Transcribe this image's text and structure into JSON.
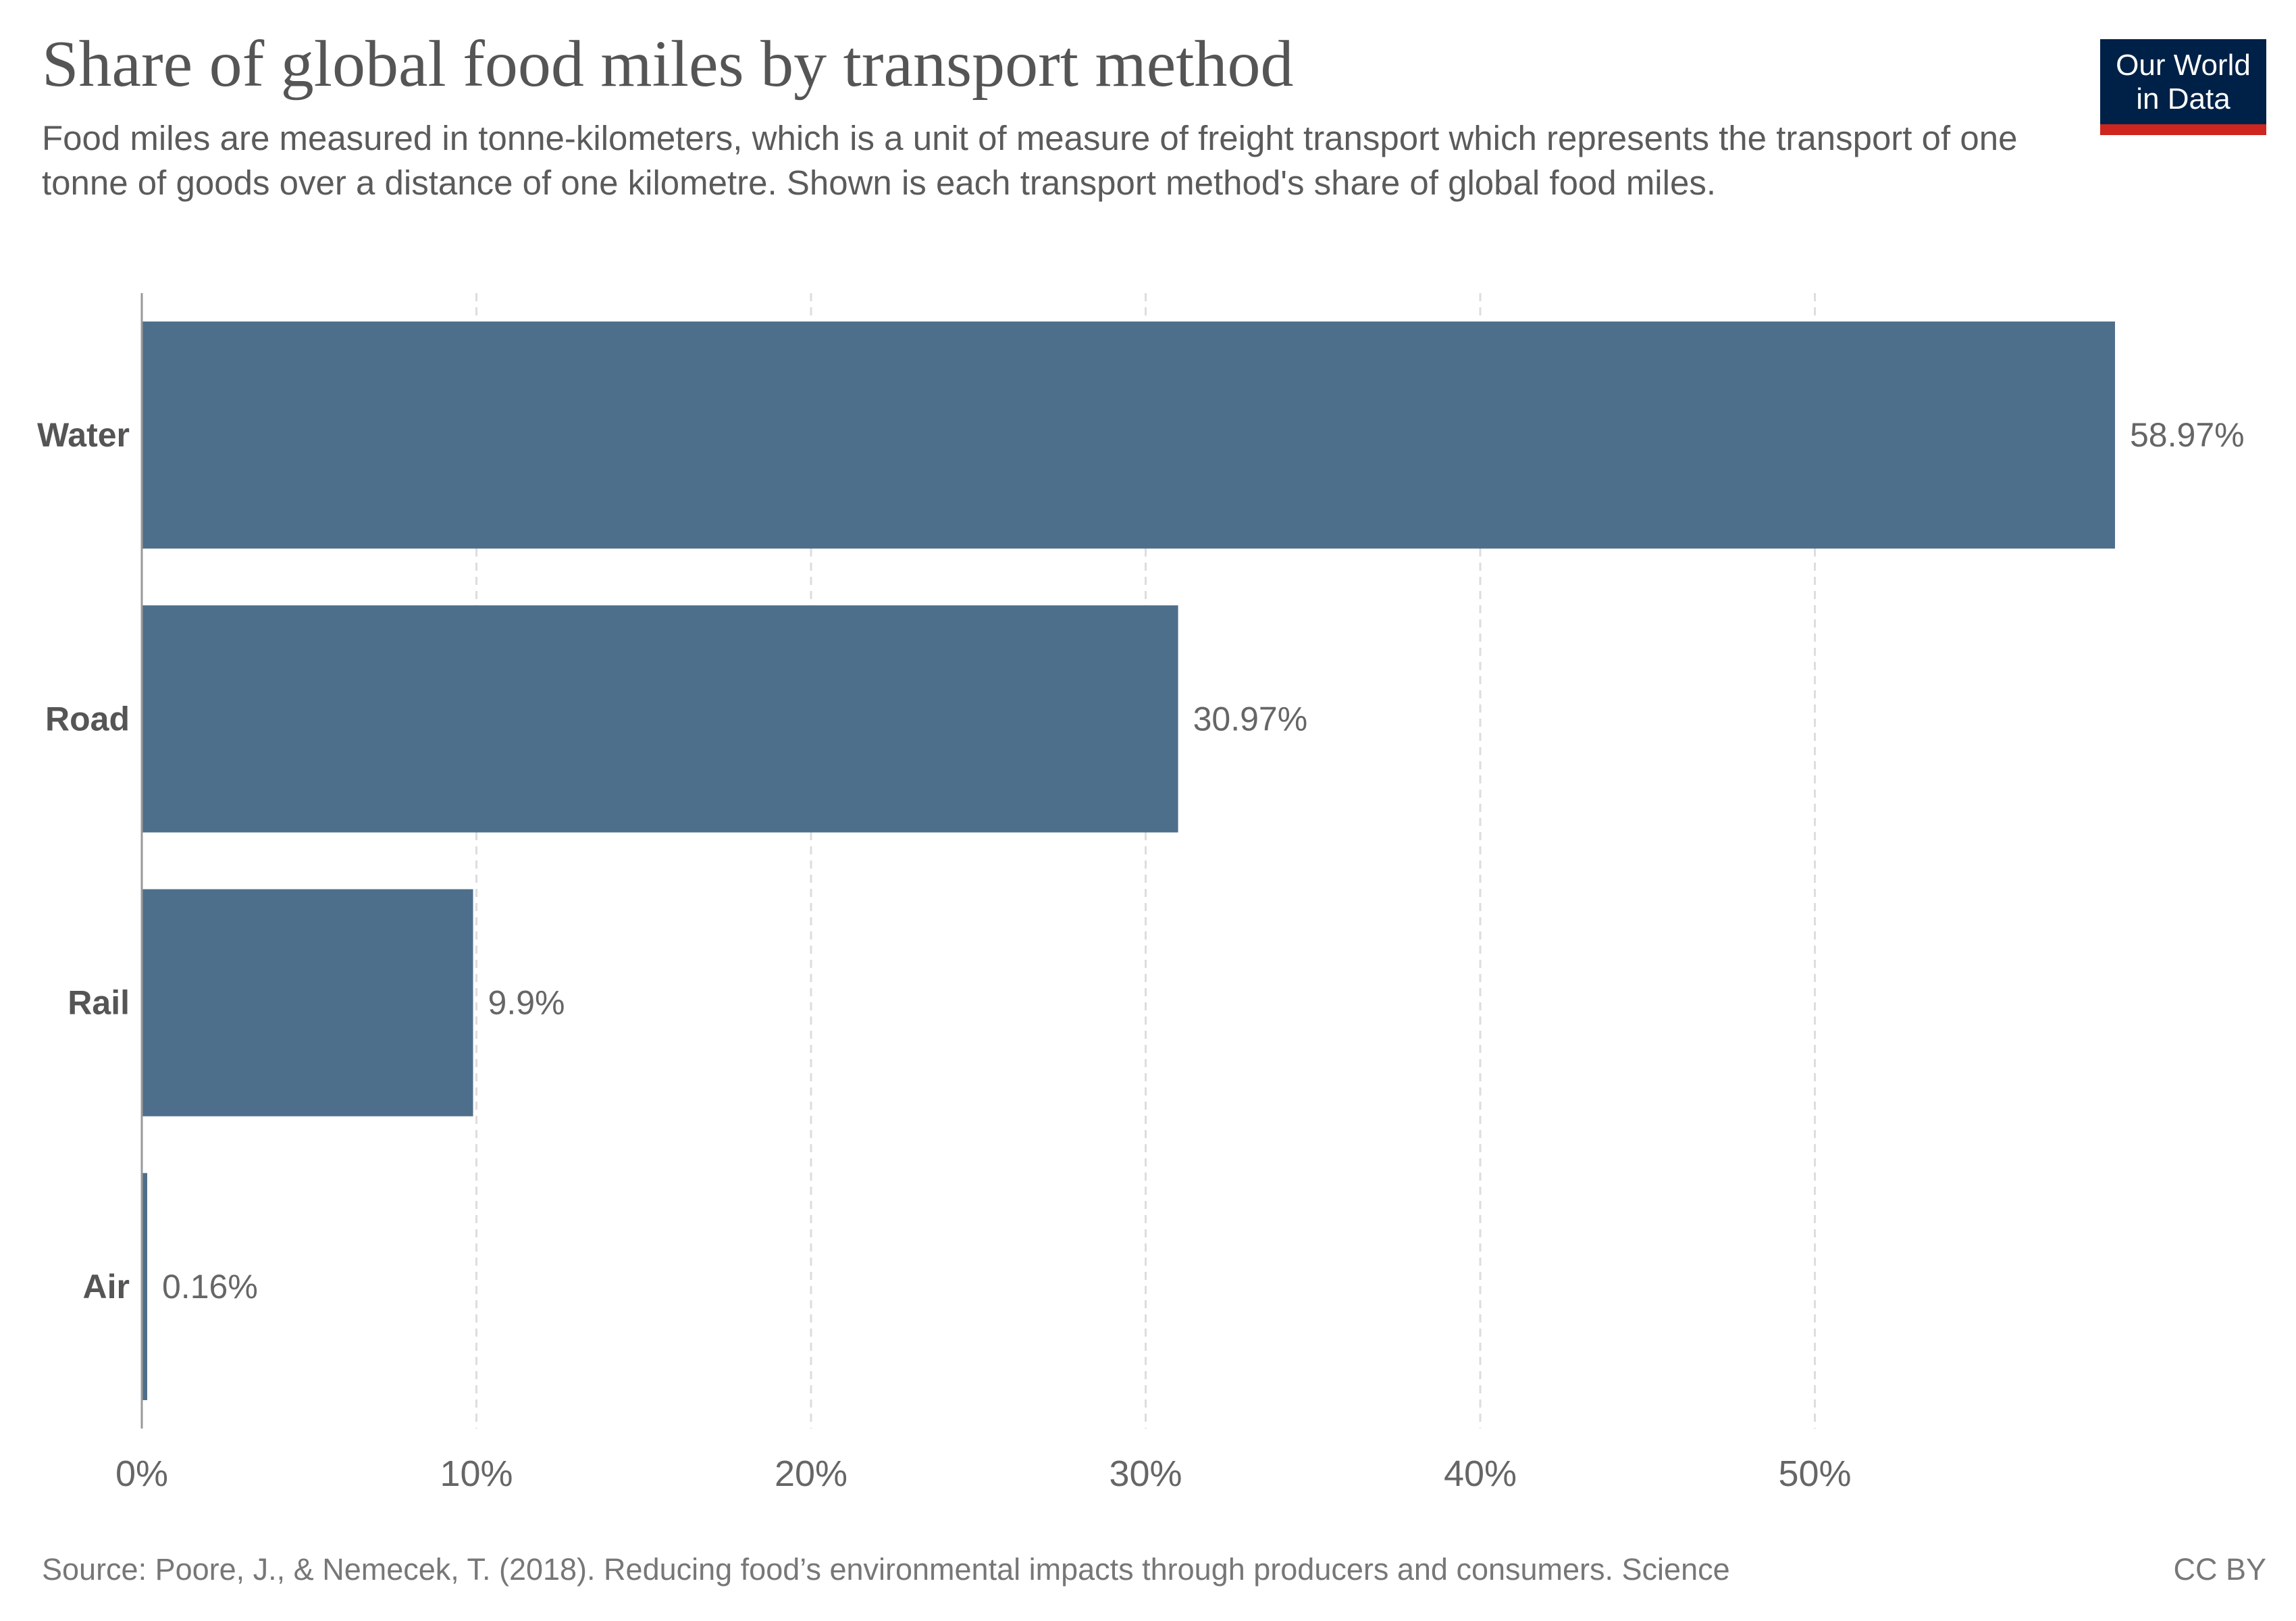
{
  "header": {
    "title": "Share of global food miles by transport method",
    "subtitle": "Food miles are measured in tonne-kilometers, which is a unit of measure of freight transport which represents the transport of one tonne of goods over a distance of one kilometre. Shown is each transport method's share of global food miles."
  },
  "logo": {
    "line1": "Our World",
    "line2": "in Data",
    "bg_color": "#002147",
    "stripe_color": "#ce261e"
  },
  "footer": {
    "source": "Source: Poore, J., & Nemecek, T. (2018). Reducing food’s environmental impacts through producers and consumers. Science",
    "license": "CC BY"
  },
  "chart_data": {
    "type": "bar",
    "orientation": "horizontal",
    "categories": [
      "Water",
      "Road",
      "Rail",
      "Air"
    ],
    "values": [
      58.97,
      30.97,
      9.9,
      0.16
    ],
    "value_labels": [
      "58.97%",
      "30.97%",
      "9.9%",
      "0.16%"
    ],
    "x_ticks": [
      0,
      10,
      20,
      30,
      40,
      50
    ],
    "x_tick_labels": [
      "0%",
      "10%",
      "20%",
      "30%",
      "40%",
      "50%"
    ],
    "xlim": [
      0,
      58.97
    ],
    "grid": "vertical dashed",
    "bar_color": "#4e6f8b"
  }
}
